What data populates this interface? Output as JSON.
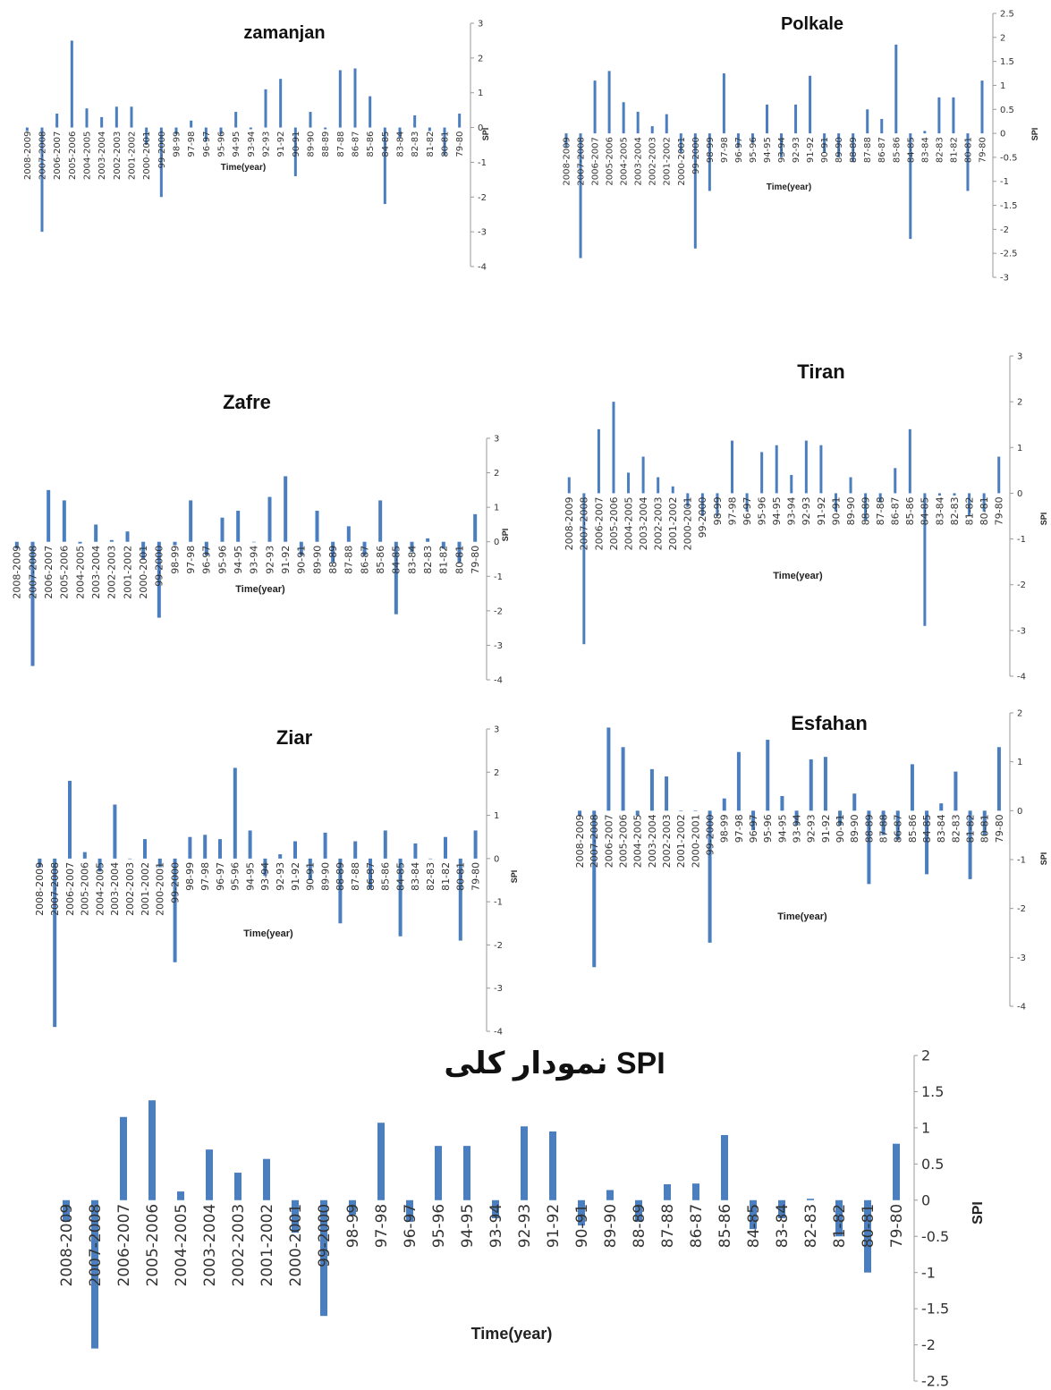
{
  "categories": [
    "2008-2009",
    "2007-2008",
    "2006-2007",
    "2005-2006",
    "2004-2005",
    "2003-2004",
    "2002-2003",
    "2001-2002",
    "2000-2001",
    "99-2000",
    "98-99",
    "97-98",
    "96-97",
    "95-96",
    "94-95",
    "93-94",
    "92-93",
    "91-92",
    "90-91",
    "89-90",
    "88-89",
    "87-88",
    "86-87",
    "85-86",
    "84-85",
    "83-84",
    "82-83",
    "81-82",
    "80-81",
    "79-80"
  ],
  "colors": {
    "bar": "#4a7ebf",
    "axis": "#9a9a9a"
  },
  "chart_data": [
    {
      "id": "zamanjan",
      "type": "bar",
      "title": "zamanjan",
      "xlabel": "Time(year)",
      "ylabel": "SPI",
      "ylim": [
        -4,
        3
      ],
      "yticks": [
        3,
        2,
        1,
        0,
        -1,
        -2,
        -3,
        -4
      ],
      "values": [
        -0.1,
        -3.0,
        0.4,
        2.5,
        0.55,
        0.3,
        0.6,
        0.6,
        -0.5,
        -2.0,
        -0.2,
        0.2,
        -0.4,
        -0.2,
        0.45,
        -0.05,
        1.1,
        1.4,
        -1.4,
        0.45,
        -0.05,
        1.65,
        1.7,
        0.9,
        -2.2,
        -0.3,
        0.35,
        -0.1,
        -0.8,
        0.4
      ],
      "grid": false
    },
    {
      "id": "polkale",
      "type": "bar",
      "title": "Polkale",
      "xlabel": "Time(year)",
      "ylabel": "SPI",
      "ylim": [
        -3,
        2.5
      ],
      "yticks": [
        2.5,
        2,
        1.5,
        1,
        0.5,
        0,
        -0.5,
        -1,
        -1.5,
        -2,
        -2.5,
        -3
      ],
      "values": [
        -0.3,
        -2.6,
        1.1,
        1.3,
        0.65,
        0.45,
        0.15,
        0.4,
        -0.4,
        -2.4,
        -1.2,
        1.25,
        -0.3,
        -0.2,
        0.6,
        -0.5,
        0.6,
        1.2,
        -0.4,
        -0.5,
        -0.6,
        0.5,
        0.3,
        1.85,
        -2.2,
        0.05,
        0.75,
        0.75,
        -1.2,
        1.1
      ],
      "grid": false
    },
    {
      "id": "zafre",
      "type": "bar",
      "title": "Zafre",
      "xlabel": "Time(year)",
      "ylabel": "SPI",
      "ylim": [
        -4,
        3
      ],
      "yticks": [
        3,
        2,
        1,
        0,
        -1,
        -2,
        -3,
        -4
      ],
      "values": [
        -0.2,
        -3.6,
        1.5,
        1.2,
        -0.05,
        0.5,
        0.05,
        0.3,
        -0.5,
        -2.2,
        -0.1,
        1.2,
        -0.4,
        0.7,
        0.9,
        0.0,
        1.3,
        1.9,
        -0.4,
        0.9,
        -0.6,
        0.45,
        -0.4,
        1.2,
        -2.1,
        -0.3,
        0.1,
        -0.2,
        -0.6,
        0.8
      ],
      "grid": false
    },
    {
      "id": "tiran",
      "type": "bar",
      "title": "Tiran",
      "xlabel": "Time(year)",
      "ylabel": "SPI",
      "ylim": [
        -4,
        3
      ],
      "yticks": [
        3,
        2,
        1,
        0,
        -1,
        -2,
        -3,
        -4
      ],
      "values": [
        0.35,
        -3.3,
        1.4,
        2.0,
        0.45,
        0.8,
        0.35,
        0.15,
        -0.3,
        -0.5,
        -0.5,
        1.15,
        -0.4,
        0.9,
        1.05,
        0.4,
        1.15,
        1.05,
        -0.4,
        0.35,
        -0.6,
        -0.2,
        0.55,
        1.4,
        -2.9,
        -0.05,
        -0.05,
        -0.5,
        -0.4,
        0.8
      ],
      "grid": false
    },
    {
      "id": "ziar",
      "type": "bar",
      "title": "Ziar",
      "xlabel": "Time(year)",
      "ylabel": "SPI",
      "ylim": [
        -4,
        3
      ],
      "yticks": [
        3,
        2,
        1,
        0,
        -1,
        -2,
        -3,
        -4
      ],
      "values": [
        -0.2,
        -3.9,
        1.8,
        0.15,
        -0.3,
        1.25,
        0.0,
        0.45,
        -0.2,
        -2.4,
        0.5,
        0.55,
        0.45,
        2.1,
        0.65,
        -0.4,
        0.1,
        0.4,
        -0.5,
        0.6,
        -1.5,
        0.4,
        -0.7,
        0.65,
        -1.8,
        0.35,
        0.0,
        0.5,
        -1.9,
        0.65
      ],
      "grid": false
    },
    {
      "id": "esfahan",
      "type": "bar",
      "title": "Esfahan",
      "xlabel": "Time(year)",
      "ylabel": "SPI",
      "ylim": [
        -4,
        2
      ],
      "yticks": [
        2,
        1,
        0,
        -1,
        -2,
        -3,
        -4
      ],
      "values": [
        -0.1,
        -3.2,
        1.7,
        1.3,
        -0.1,
        0.85,
        0.7,
        0.0,
        0.0,
        -2.7,
        0.25,
        1.2,
        -0.4,
        1.45,
        0.3,
        -0.3,
        1.05,
        1.1,
        -0.3,
        0.35,
        -1.5,
        -0.5,
        -0.6,
        0.95,
        -1.3,
        0.15,
        0.8,
        -1.4,
        -0.5,
        1.3
      ],
      "grid": false
    },
    {
      "id": "overall",
      "type": "bar",
      "title": "نمودار کلی SPI",
      "xlabel": "Time(year)",
      "ylabel": "SPI",
      "ylim": [
        -2.5,
        2
      ],
      "yticks": [
        2,
        1.5,
        1,
        0.5,
        0,
        -0.5,
        -1,
        -1.5,
        -2,
        -2.5
      ],
      "values": [
        -0.3,
        -2.05,
        1.15,
        1.38,
        0.12,
        0.7,
        0.38,
        0.57,
        -0.45,
        -1.6,
        -0.2,
        1.07,
        -0.3,
        0.75,
        0.75,
        -0.25,
        1.02,
        0.95,
        -0.35,
        0.14,
        -0.3,
        0.22,
        0.23,
        0.9,
        -0.4,
        -0.25,
        0.02,
        -0.5,
        -1.0,
        0.78
      ],
      "grid": false
    }
  ]
}
